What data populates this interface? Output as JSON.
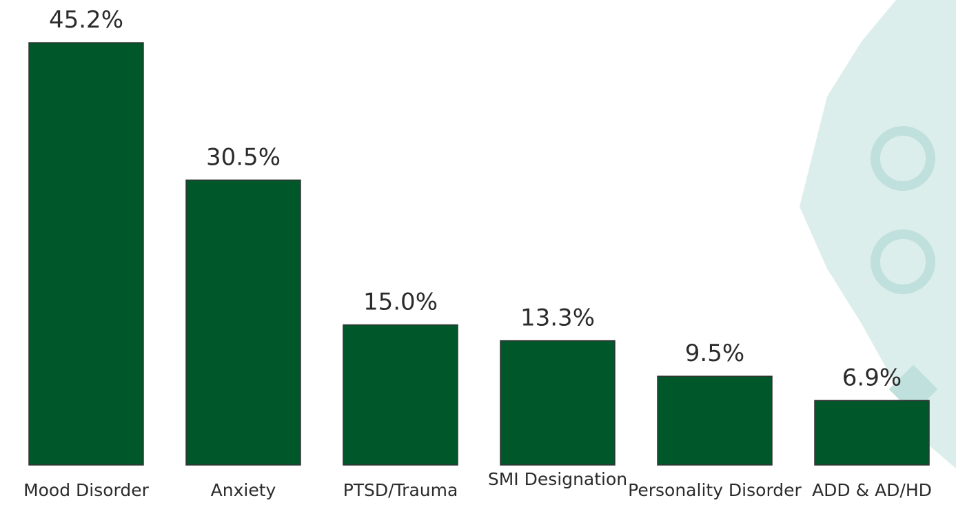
{
  "chart_data": {
    "type": "bar",
    "categories": [
      "Mood Disorder",
      "Anxiety",
      "PTSD/Trauma",
      "SMI Designation",
      "Personality Disorder",
      "ADD & AD/HD"
    ],
    "values": [
      45.2,
      30.5,
      15.0,
      13.3,
      9.5,
      6.9
    ],
    "value_labels": [
      "45.2%",
      "30.5%",
      "15.0%",
      "13.3%",
      "9.5%",
      "6.9%"
    ],
    "color": "#00572a"
  }
}
